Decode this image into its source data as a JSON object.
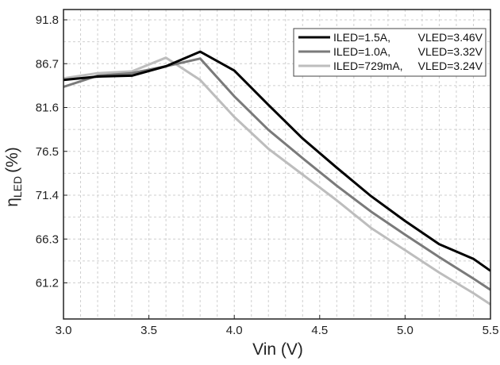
{
  "chart_data": {
    "type": "line",
    "xlabel": "Vin (V)",
    "ylabel_main": "η",
    "ylabel_sub": "LED",
    "ylabel_unit": "(%)",
    "xlim": [
      3.0,
      5.5
    ],
    "ylim": [
      57.0,
      93.0
    ],
    "x_ticks": [
      3.0,
      3.5,
      4.0,
      4.5,
      5.0,
      5.5
    ],
    "x_tick_labels": [
      "3.0",
      "3.5",
      "4.0",
      "4.5",
      "5.0",
      "5.5"
    ],
    "y_ticks": [
      61.2,
      66.3,
      71.4,
      76.5,
      81.6,
      86.7,
      91.8
    ],
    "y_tick_labels": [
      "61.2",
      "66.3",
      "71.4",
      "76.5",
      "81.6",
      "86.7",
      "91.8"
    ],
    "grid": true,
    "legend_position": "top-right",
    "series": [
      {
        "name": "ILED=1.5A,",
        "name2": "VLED=3.46V",
        "color": "#000000",
        "x": [
          3.0,
          3.2,
          3.4,
          3.6,
          3.8,
          4.0,
          4.2,
          4.4,
          4.6,
          4.8,
          5.0,
          5.2,
          5.4,
          5.5
        ],
        "y": [
          84.8,
          85.2,
          85.3,
          86.4,
          88.1,
          85.9,
          81.9,
          78.0,
          74.6,
          71.3,
          68.4,
          65.7,
          64.0,
          62.6
        ]
      },
      {
        "name": "ILED=1.0A,",
        "name2": "VLED=3.32V",
        "color": "#7a7a7a",
        "x": [
          3.0,
          3.2,
          3.4,
          3.6,
          3.8,
          4.0,
          4.2,
          4.4,
          4.6,
          4.8,
          5.0,
          5.2,
          5.4,
          5.5
        ],
        "y": [
          84.0,
          85.3,
          85.6,
          86.4,
          87.3,
          82.9,
          79.0,
          75.7,
          72.5,
          69.5,
          66.8,
          64.2,
          61.7,
          60.4
        ]
      },
      {
        "name": "ILED=729mA,",
        "name2": "VLED=3.24V",
        "color": "#bdbdbd",
        "x": [
          3.0,
          3.2,
          3.4,
          3.6,
          3.8,
          4.0,
          4.2,
          4.4,
          4.6,
          4.8,
          5.0,
          5.2,
          5.4,
          5.5
        ],
        "y": [
          85.0,
          85.6,
          85.8,
          87.4,
          84.8,
          80.5,
          76.8,
          73.8,
          70.8,
          67.6,
          65.0,
          62.4,
          60.0,
          58.7
        ]
      }
    ]
  }
}
